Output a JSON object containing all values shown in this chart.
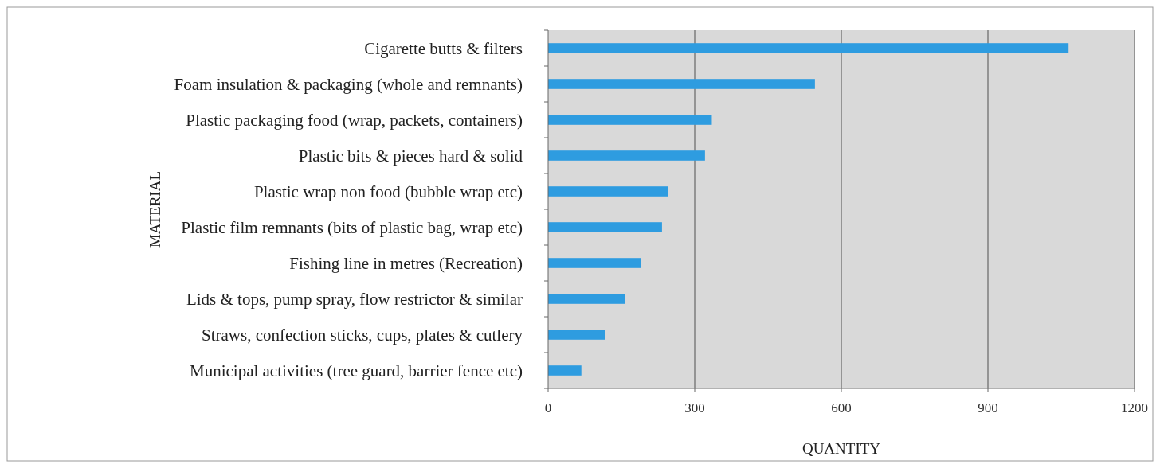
{
  "chart_data": {
    "type": "bar",
    "orientation": "horizontal",
    "xlabel": "QUANTITY",
    "ylabel": "MATERIAL",
    "categories": [
      "Cigarette butts & filters",
      "Foam insulation & packaging (whole and remnants)",
      "Plastic packaging food (wrap, packets, containers)",
      "Plastic bits & pieces hard & solid",
      "Plastic wrap non food (bubble wrap etc)",
      "Plastic film remnants (bits of plastic bag, wrap etc)",
      "Fishing line in metres (Recreation)",
      "Lids & tops, pump spray, flow restrictor & similar",
      "Straws, confection sticks, cups, plates & cutlery",
      "Municipal activities (tree guard, barrier fence etc)"
    ],
    "values": [
      1065,
      546,
      335,
      321,
      246,
      233,
      190,
      157,
      117,
      68
    ],
    "color": "#2e9ce0",
    "xlim": [
      0,
      1200
    ],
    "xticks": [
      0,
      300,
      600,
      900,
      1200
    ],
    "grid": "x"
  }
}
